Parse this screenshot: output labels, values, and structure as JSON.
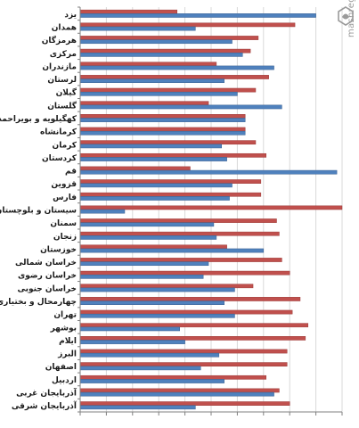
{
  "watermark": {
    "text": "mashreghnews.ir"
  },
  "colors": {
    "series_blue": "#4f81bd",
    "series_red": "#c0504d",
    "grid": "#d9d9d9",
    "axis": "#808080",
    "label": "#1a1a1a"
  },
  "chart_data": {
    "type": "bar",
    "orientation": "horizontal",
    "title": "",
    "xlabel": "",
    "ylabel": "",
    "xlim": [
      0,
      100
    ],
    "x_tick_labels_visible": false,
    "grid": true,
    "legend": "none",
    "categories": [
      "یزد",
      "همدان",
      "هرمزگان",
      "مرکزی",
      "مازندران",
      "لرستان",
      "گیلان",
      "گلستان",
      "کهگیلویه و بویراحمد",
      "کرمانشاه",
      "کرمان",
      "کردستان",
      "قم",
      "قزوین",
      "فارس",
      "سیستان و بلوچستان",
      "سمنان",
      "زنجان",
      "خوزستان",
      "خراسان شمالی",
      "خراسان رضوی",
      "خراسان جنوبی",
      "چهارمحال و بختیاری",
      "تهران",
      "بوشهر",
      "ایلام",
      "البرز",
      "اصفهان",
      "اردبیل",
      "آذربایجان غربی",
      "آذربایجان شرقی"
    ],
    "series": [
      {
        "color": "#c0504d",
        "values": [
          37,
          82,
          68,
          65,
          52,
          72,
          67,
          49,
          63,
          63,
          67,
          71,
          42,
          69,
          69,
          100,
          75,
          76,
          56,
          77,
          80,
          66,
          84,
          81,
          87,
          86,
          79,
          79,
          71,
          76,
          80
        ]
      },
      {
        "color": "#4f81bd",
        "values": [
          90,
          44,
          58,
          62,
          74,
          55,
          60,
          77,
          63,
          63,
          54,
          56,
          98,
          58,
          57,
          17,
          51,
          52,
          70,
          49,
          47,
          59,
          55,
          59,
          38,
          40,
          53,
          46,
          55,
          74,
          44
        ]
      }
    ]
  }
}
